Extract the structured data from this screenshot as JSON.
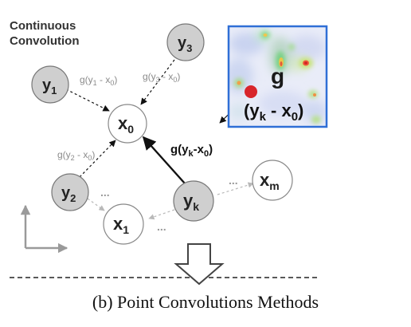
{
  "title": {
    "line1": "Continuous",
    "line2": "Convolution"
  },
  "nodes": {
    "y1": {
      "base": "y",
      "sub": "1"
    },
    "y2": {
      "base": "y",
      "sub": "2"
    },
    "y3": {
      "base": "y",
      "sub": "3"
    },
    "yk": {
      "base": "y",
      "sub": "k"
    },
    "x0": {
      "base": "x",
      "sub": "0"
    },
    "x1": {
      "base": "x",
      "sub": "1"
    },
    "xm": {
      "base": "x",
      "sub": "m"
    }
  },
  "edge_labels": {
    "y1_x0": {
      "a": "g(y",
      "sub1": "1",
      "b": " - x",
      "sub2": "0",
      "c": ")"
    },
    "y3_x0": {
      "a": "g(y",
      "sub1": "3",
      "b": " - x",
      "sub2": "0",
      "c": ")"
    },
    "y2_x0": {
      "a": "g(y",
      "sub1": "2",
      "b": " - x",
      "sub2": "0",
      "c": ")"
    },
    "yk_x0": {
      "a": "g(y",
      "sub1": "k",
      "b": "-x",
      "sub2": "0",
      "c": ")"
    }
  },
  "ellipsis": "...",
  "kernel": {
    "g_label": "g",
    "point": {
      "a": "(y",
      "sub1": "k",
      "b": " - x",
      "sub2": "0",
      "c": ")"
    }
  },
  "caption": "(b) Point Convolutions Methods",
  "colors": {
    "neighbor_fill": "#cfcfcf",
    "center_fill": "#ffffff",
    "kernel_border": "#2f6fd6",
    "kernel_point": "#d8252b",
    "arrow_gray": "#b9b9b9"
  }
}
